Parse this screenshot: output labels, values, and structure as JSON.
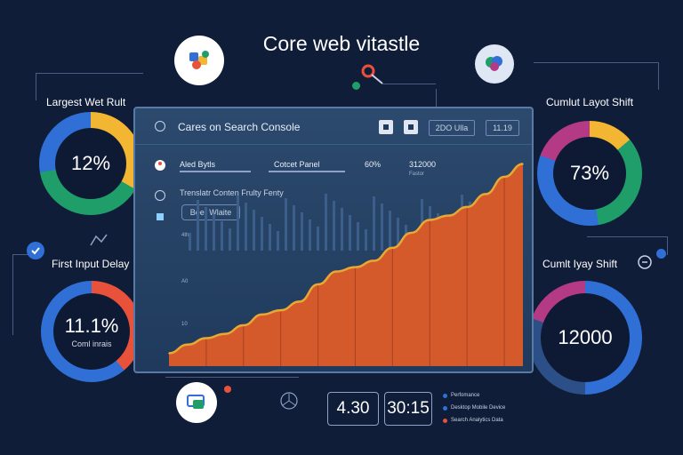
{
  "page_title": "Core web vitastle",
  "gauges": {
    "lcp": {
      "label": "Largest Wet Rult",
      "value": "12%",
      "sub": ""
    },
    "cls_top": {
      "label": "Cumlut Layot Shift",
      "value": "73%",
      "sub": ""
    },
    "fid": {
      "label": "First Input Delay",
      "value": "11.1%",
      "sub": "Coml inrais"
    },
    "cls_bottom": {
      "label": "Cumlt Iyay Shift",
      "value": "12000",
      "sub": ""
    }
  },
  "console": {
    "title": "Cares on Search Console",
    "chip_left": "2DO Ulla",
    "chip_right": "11.19",
    "row1": {
      "label_a": "Aled Bytls",
      "label_b": "Cotcet Panel",
      "value_a": "60%",
      "value_b": "312000",
      "sub_b": "Fastor"
    },
    "row2_label": "Trenslatr Conten Frulty Fenty",
    "view_button": "Beer Wlaite",
    "axis_labels": [
      "4th",
      "A0",
      "10"
    ]
  },
  "chart_data": {
    "type": "area",
    "title": "",
    "xlabel": "",
    "ylabel": "",
    "x": [
      1,
      2,
      3,
      4,
      5,
      6,
      7,
      8,
      9,
      10,
      11,
      12,
      13,
      14,
      15,
      16,
      17,
      18,
      19,
      20
    ],
    "series": [
      {
        "values": [
          6,
          10,
          13,
          15,
          19,
          24,
          26,
          30,
          38,
          44,
          46,
          49,
          55,
          62,
          68,
          70,
          74,
          80,
          88,
          94
        ]
      }
    ],
    "ylim": [
      0,
      100
    ],
    "grid": false
  },
  "stats": {
    "left": "4.30",
    "right": "30:15"
  },
  "legend": [
    "Perfomance",
    "Desktop Mobile Device",
    "Search Analytics Data"
  ],
  "colors": {
    "background": "#0f1d38",
    "area": "#d45a2c",
    "area_line": "#e8a834",
    "gauge_blue": "#2f6fd6",
    "gauge_green": "#1f9e6a",
    "gauge_yellow": "#f2b632",
    "gauge_red": "#e8513a",
    "gauge_magenta": "#b43a86"
  },
  "icons": [
    "puzzle-gear-icon",
    "brain-icon",
    "key-icon",
    "check-badge-icon",
    "dashboard-icon",
    "compass-icon",
    "folder-icon",
    "person-icon",
    "search-icon"
  ]
}
